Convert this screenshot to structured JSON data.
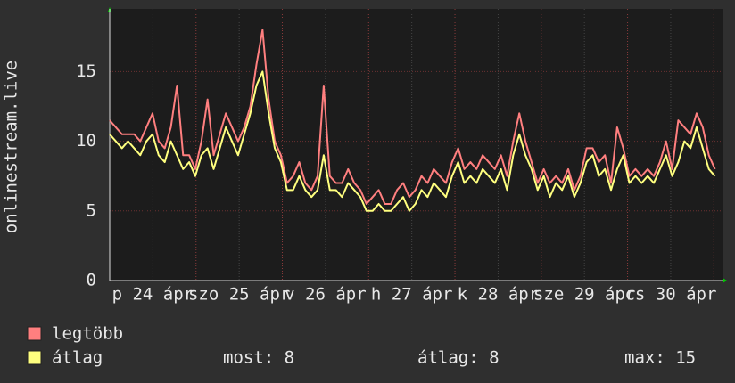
{
  "chart_data": {
    "type": "line",
    "y_label": "onlinestream.live",
    "xlim": [
      0,
      170.4
    ],
    "xticks": [
      {
        "value": 12,
        "label": "p 24 ápr"
      },
      {
        "value": 36,
        "label": "szo 25 ápr"
      },
      {
        "value": 60,
        "label": "v 26 ápr"
      },
      {
        "value": 84,
        "label": "h 27 ápr"
      },
      {
        "value": 108,
        "label": "k 28 ápr"
      },
      {
        "value": 132,
        "label": "sze 29 ápr"
      },
      {
        "value": 156,
        "label": "cs 30 ápr"
      }
    ],
    "x_major_grid": [
      24,
      48,
      72,
      96,
      120,
      144,
      168
    ],
    "ylim": [
      0,
      19.5
    ],
    "yticks": [
      0,
      5,
      10,
      15
    ],
    "grid": true,
    "x": [
      0,
      1.7,
      3.4,
      5.1,
      6.8,
      8.5,
      10.2,
      11.9,
      13.6,
      15.3,
      17,
      18.7,
      20.4,
      22.1,
      23.8,
      25.5,
      27.2,
      28.9,
      30.6,
      32.3,
      34,
      35.7,
      37.4,
      39.1,
      40.8,
      42.5,
      44.2,
      45.9,
      47.6,
      49.3,
      51,
      52.7,
      54.4,
      56.1,
      57.8,
      59.5,
      61.2,
      62.9,
      64.6,
      66.3,
      68,
      69.7,
      71.4,
      73.1,
      74.8,
      76.5,
      78.2,
      79.9,
      81.6,
      83.3,
      85,
      86.7,
      88.4,
      90.1,
      91.8,
      93.5,
      95.2,
      96.9,
      98.6,
      100.3,
      102,
      103.7,
      105.4,
      107.1,
      108.8,
      110.5,
      112.2,
      113.9,
      115.6,
      117.3,
      119,
      120.7,
      122.4,
      124.1,
      125.8,
      127.5,
      129.2,
      130.9,
      132.6,
      134.3,
      136,
      137.7,
      139.4,
      141.1,
      142.8,
      144.5,
      146.2,
      147.9,
      149.6,
      151.3,
      153,
      154.7,
      156.4,
      158.1,
      159.8,
      161.5,
      163.2,
      164.9,
      166.6,
      168.3
    ],
    "series": [
      {
        "name": "legtöbb",
        "color": "#ff7f7f",
        "values": [
          11.5,
          11,
          10.5,
          10.5,
          10.5,
          10,
          11,
          12,
          10,
          9.5,
          11,
          14,
          9,
          9,
          8,
          10,
          13,
          9,
          10.5,
          12,
          11,
          10,
          11,
          12.5,
          15.5,
          18,
          13,
          10,
          9,
          7,
          7.5,
          8.5,
          7,
          6.5,
          7.5,
          14,
          7.5,
          7,
          7,
          8,
          7,
          6.5,
          5.5,
          6,
          6.5,
          5.5,
          5.5,
          6.5,
          7,
          6,
          6.5,
          7.5,
          7,
          8,
          7.5,
          7,
          8.5,
          9.5,
          8,
          8.5,
          8,
          9,
          8.5,
          8,
          9,
          7.5,
          10,
          12,
          10,
          8.5,
          7,
          8,
          7,
          7.5,
          7,
          8,
          6.5,
          7.5,
          9.5,
          9.5,
          8.5,
          9,
          7,
          11,
          9.5,
          7.5,
          8,
          7.5,
          8,
          7.5,
          8.5,
          10,
          8,
          11.5,
          11,
          10.5,
          12,
          11,
          9,
          8
        ]
      },
      {
        "name": "átlag",
        "color": "#ffff7f",
        "values": [
          10.5,
          10,
          9.5,
          10,
          9.5,
          9,
          10,
          10.5,
          9,
          8.5,
          10,
          9,
          8,
          8.5,
          7.5,
          9,
          9.5,
          8,
          9.5,
          11,
          10,
          9,
          10.5,
          12,
          14,
          15,
          12,
          9.5,
          8.5,
          6.5,
          6.5,
          7.5,
          6.5,
          6,
          6.5,
          9,
          6.5,
          6.5,
          6,
          7,
          6.5,
          6,
          5,
          5,
          5.5,
          5,
          5,
          5.5,
          6,
          5,
          5.5,
          6.5,
          6,
          7,
          6.5,
          6,
          7.5,
          8.5,
          7,
          7.5,
          7,
          8,
          7.5,
          7,
          8,
          6.5,
          9,
          10.5,
          9,
          8,
          6.5,
          7.5,
          6,
          7,
          6.5,
          7.5,
          6,
          7,
          8.5,
          9,
          7.5,
          8,
          6.5,
          8,
          9,
          7,
          7.5,
          7,
          7.5,
          7,
          8,
          9,
          7.5,
          8.5,
          10,
          9.5,
          11,
          9.5,
          8,
          7.5
        ]
      }
    ],
    "stats": [
      "most: 8",
      "átlag: 8",
      "max: 15"
    ]
  }
}
